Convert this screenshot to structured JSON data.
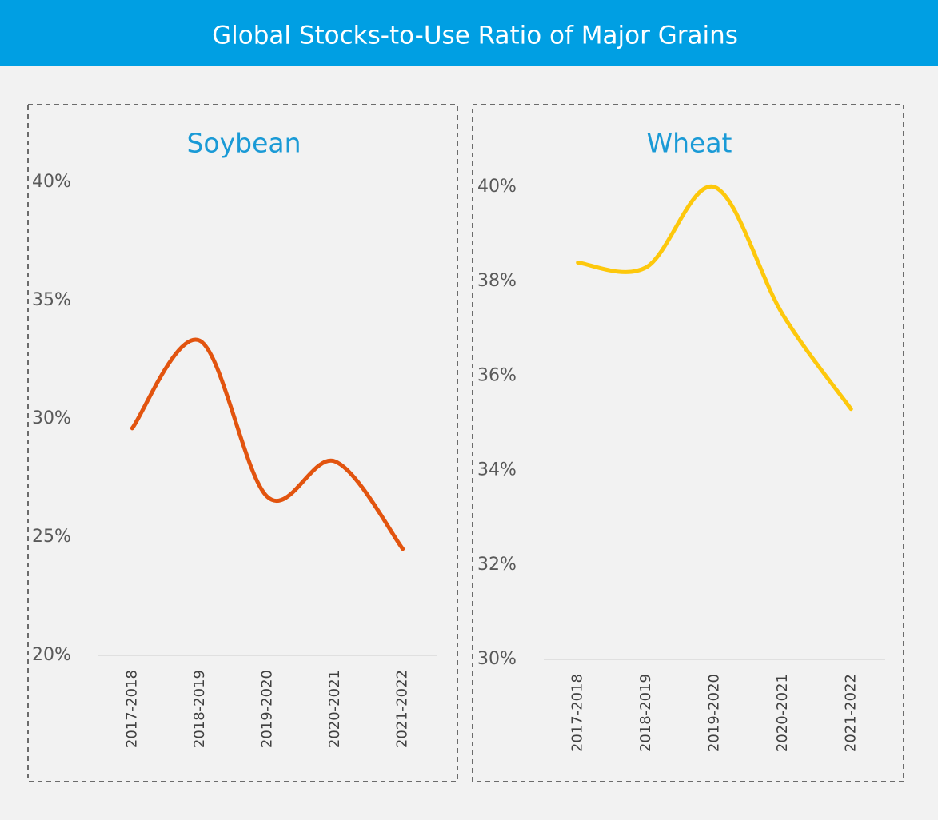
{
  "title": "Global Stocks-to-Use Ratio of Major Grains",
  "chart_data": [
    {
      "type": "line",
      "title": "Soybean",
      "categories": [
        "2017-2018",
        "2018-2019",
        "2019-2020",
        "2020-2021",
        "2021-2022"
      ],
      "series": [
        {
          "name": "Soybean",
          "color": "#e2540f",
          "values": [
            29.6,
            33.3,
            26.7,
            28.2,
            24.5
          ]
        }
      ],
      "ylim": [
        20,
        40
      ],
      "yticks": [
        {
          "value": 20,
          "label": "20%"
        },
        {
          "value": 25,
          "label": "25%"
        },
        {
          "value": 30,
          "label": "30%"
        },
        {
          "value": 35,
          "label": "35%"
        },
        {
          "value": 40,
          "label": "40%"
        }
      ],
      "smooth": true
    },
    {
      "type": "line",
      "title": "Wheat",
      "categories": [
        "2017-2018",
        "2018-2019",
        "2019-2020",
        "2020-2021",
        "2021-2022"
      ],
      "series": [
        {
          "name": "Wheat",
          "color": "#fdc80c",
          "values": [
            38.4,
            38.3,
            40.0,
            37.3,
            35.3
          ]
        }
      ],
      "ylim": [
        30,
        40
      ],
      "yticks": [
        {
          "value": 30,
          "label": "30%"
        },
        {
          "value": 32,
          "label": "32%"
        },
        {
          "value": 34,
          "label": "34%"
        },
        {
          "value": 36,
          "label": "36%"
        },
        {
          "value": 38,
          "label": "38%"
        },
        {
          "value": 40,
          "label": "40%"
        }
      ],
      "smooth": true
    }
  ]
}
